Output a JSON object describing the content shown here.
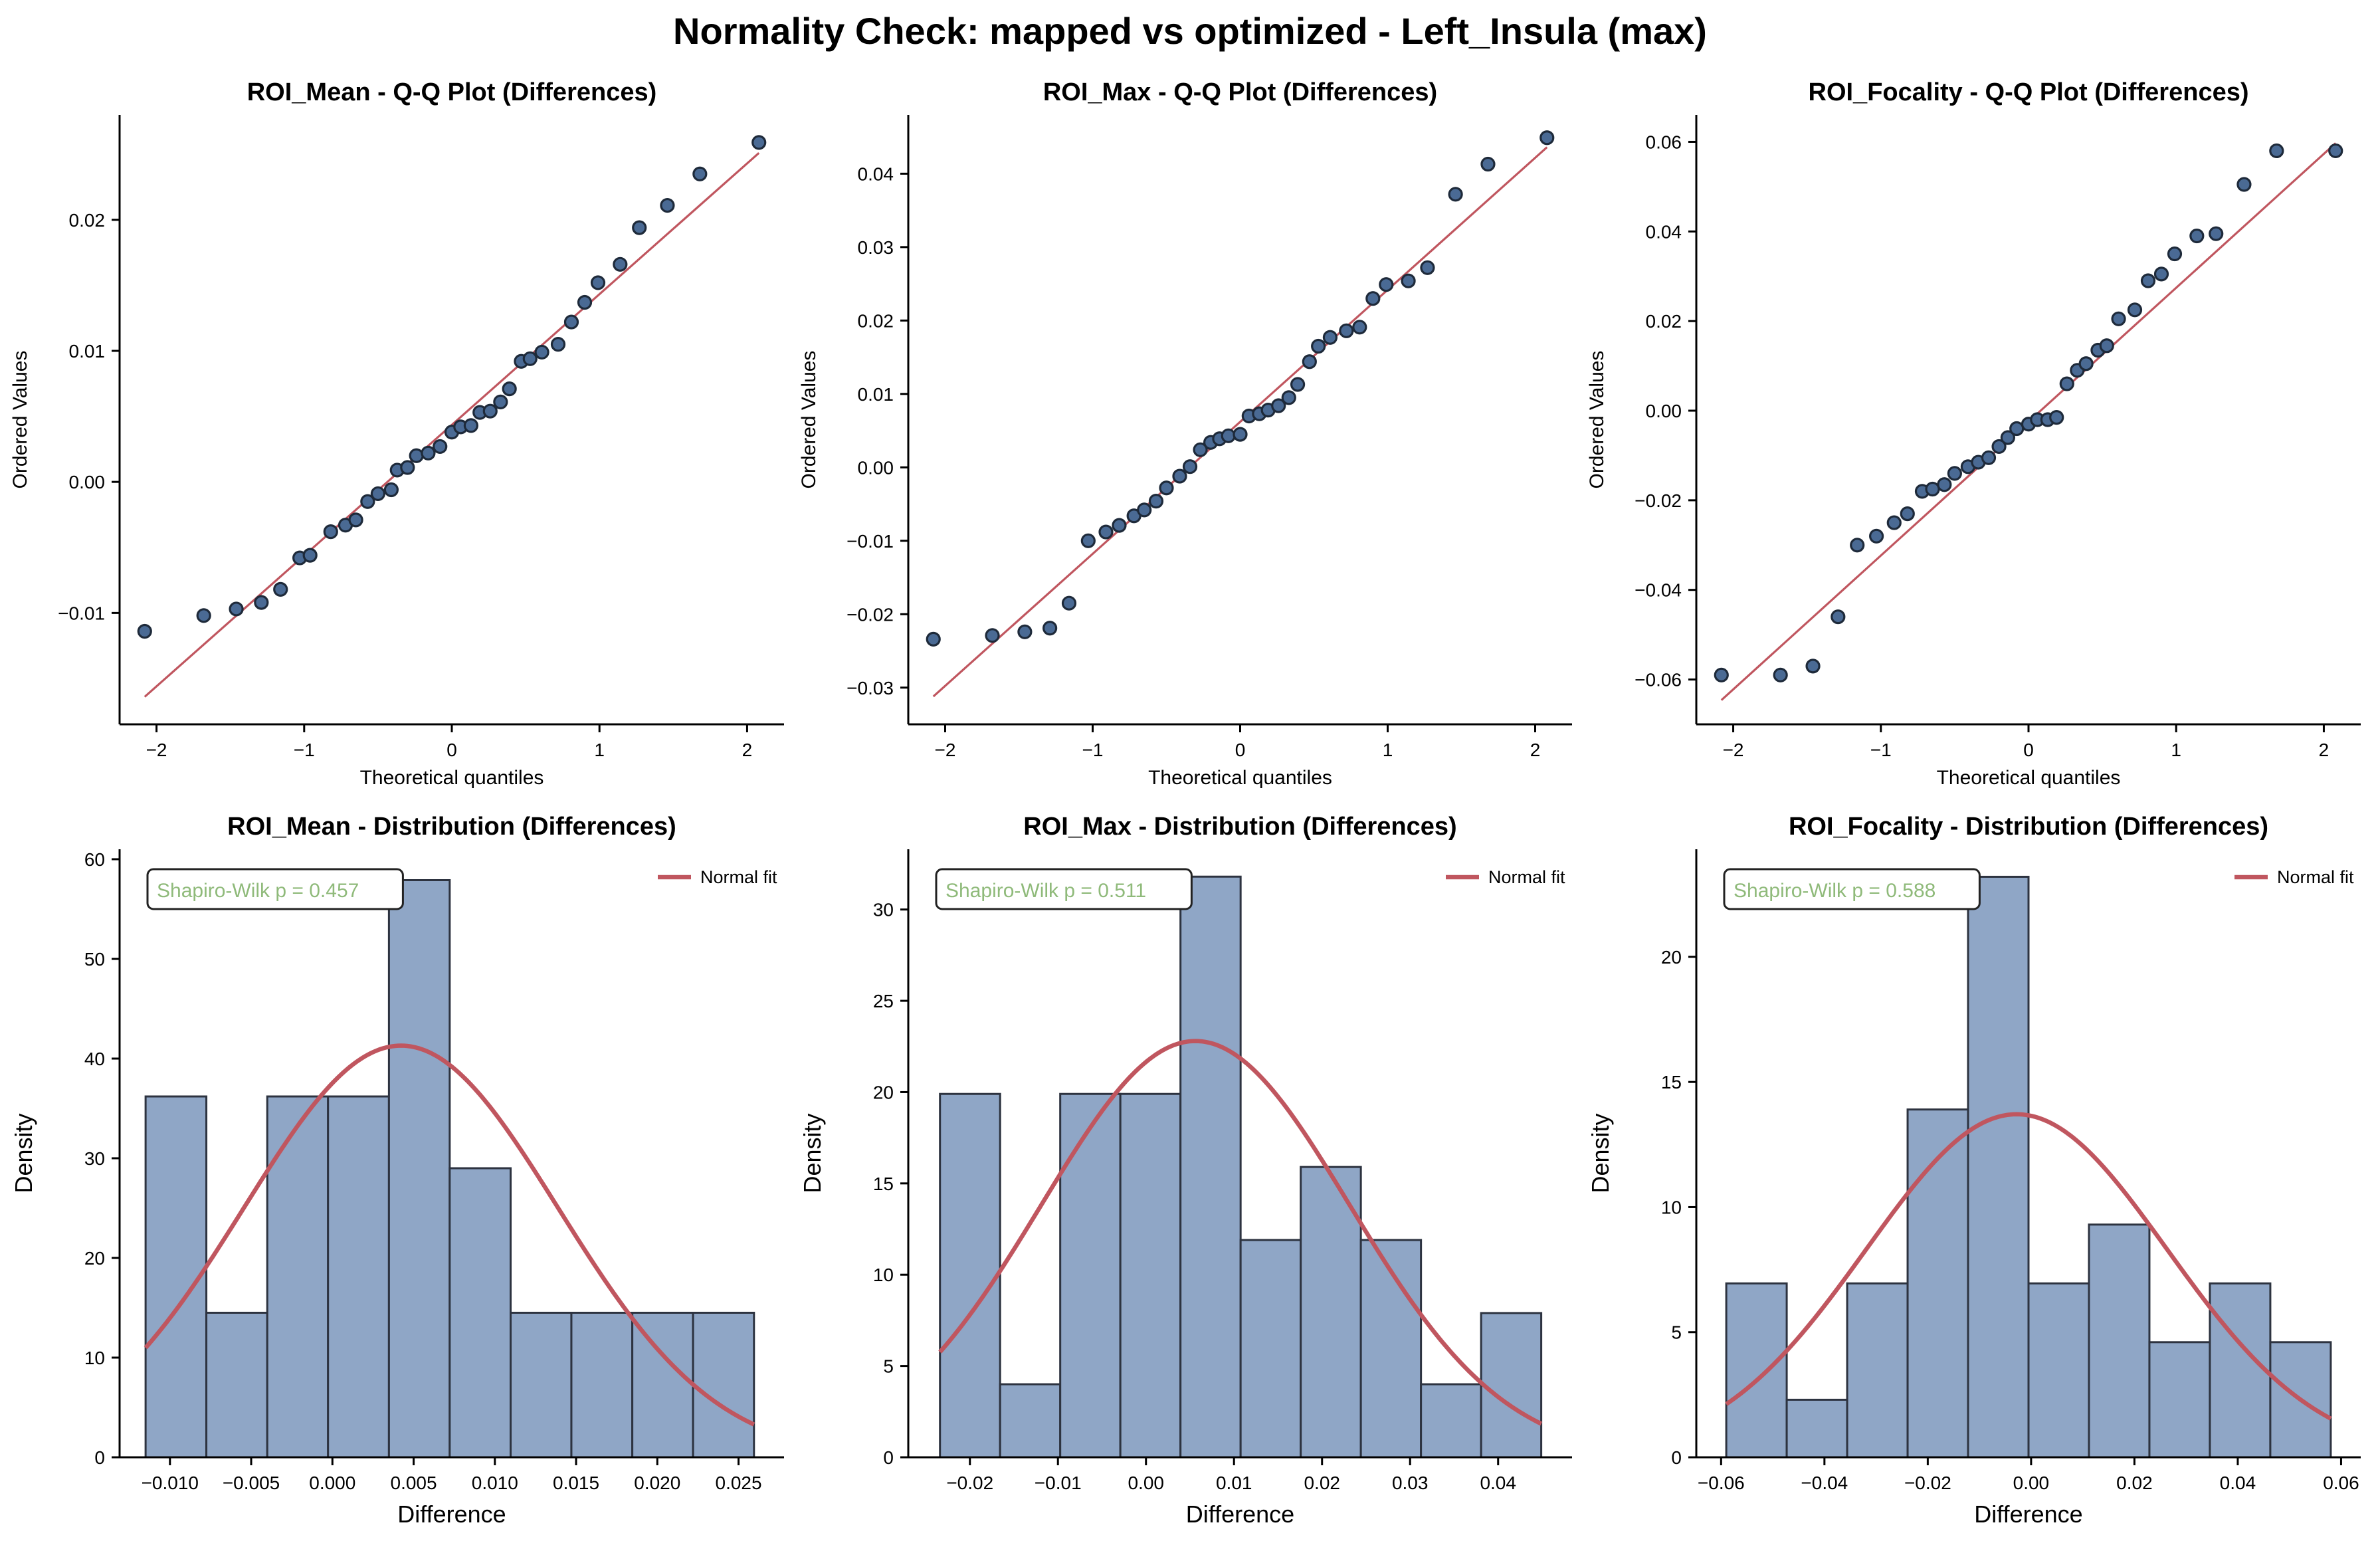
{
  "figure_title": "Normality Check: mapped vs optimized - Left_Insula (max)",
  "colors": {
    "point_fill": "#4a6a94",
    "point_edge": "#1e2a3a",
    "fit_line": "#c0565f",
    "bar_fill": "#8fa6c6",
    "bar_edge": "#2d3340",
    "annotation_text": "#8fba7a"
  },
  "chart_data": [
    {
      "type": "scatter",
      "title": "ROI_Mean - Q-Q Plot (Differences)",
      "xlabel": "Theoretical quantiles",
      "ylabel": "Ordered Values",
      "xlim": [
        -2.25,
        2.25
      ],
      "ylim": [
        -0.0185,
        0.028
      ],
      "xticks": [
        -2,
        -1,
        0,
        1,
        2
      ],
      "xticklabels": [
        "−2",
        "−1",
        "0",
        "1",
        "2"
      ],
      "yticks": [
        -0.01,
        0.0,
        0.01,
        0.02
      ],
      "yticklabels": [
        "−0.01",
        "0.00",
        "0.01",
        "0.02"
      ],
      "points": {
        "x": [
          -2.08,
          -1.68,
          -1.46,
          -1.29,
          -1.16,
          -1.03,
          -0.96,
          -0.82,
          -0.72,
          -0.65,
          -0.57,
          -0.5,
          -0.41,
          -0.37,
          -0.3,
          -0.24,
          -0.16,
          -0.08,
          0.0,
          0.06,
          0.13,
          0.19,
          0.26,
          0.33,
          0.39,
          0.47,
          0.53,
          0.61,
          0.72,
          0.81,
          0.9,
          0.99,
          1.14,
          1.27,
          1.46,
          1.68,
          2.08
        ],
        "y": [
          -0.0114,
          -0.0102,
          -0.0097,
          -0.0092,
          -0.0082,
          -0.0058,
          -0.0056,
          -0.0038,
          -0.0033,
          -0.0029,
          -0.0015,
          -0.0009,
          -0.0006,
          0.0009,
          0.0011,
          0.002,
          0.0022,
          0.0027,
          0.0038,
          0.0042,
          0.0043,
          0.0053,
          0.0054,
          0.0061,
          0.0071,
          0.0092,
          0.0094,
          0.0099,
          0.0105,
          0.0122,
          0.0137,
          0.0152,
          0.0166,
          0.0194,
          0.0211,
          0.0235,
          0.0259
        ]
      },
      "fit_line": {
        "x": [
          -2.08,
          2.08
        ],
        "y": [
          -0.0164,
          0.0251
        ]
      }
    },
    {
      "type": "scatter",
      "title": "ROI_Max - Q-Q Plot (Differences)",
      "xlabel": "Theoretical quantiles",
      "ylabel": "Ordered Values",
      "xlim": [
        -2.25,
        2.25
      ],
      "ylim": [
        -0.035,
        0.048
      ],
      "xticks": [
        -2,
        -1,
        0,
        1,
        2
      ],
      "xticklabels": [
        "−2",
        "−1",
        "0",
        "1",
        "2"
      ],
      "yticks": [
        -0.03,
        -0.02,
        -0.01,
        0.0,
        0.01,
        0.02,
        0.03,
        0.04
      ],
      "yticklabels": [
        "−0.03",
        "−0.02",
        "−0.01",
        "0.00",
        "0.01",
        "0.02",
        "0.03",
        "0.04"
      ],
      "points": {
        "x": [
          -2.08,
          -1.68,
          -1.46,
          -1.29,
          -1.16,
          -1.03,
          -0.91,
          -0.82,
          -0.72,
          -0.65,
          -0.57,
          -0.5,
          -0.41,
          -0.34,
          -0.27,
          -0.2,
          -0.14,
          -0.08,
          0.0,
          0.06,
          0.13,
          0.19,
          0.26,
          0.33,
          0.39,
          0.47,
          0.53,
          0.61,
          0.72,
          0.81,
          0.9,
          0.99,
          1.14,
          1.27,
          1.46,
          1.68,
          2.08
        ],
        "y": [
          -0.0234,
          -0.0229,
          -0.0224,
          -0.0219,
          -0.0185,
          -0.01,
          -0.0088,
          -0.0079,
          -0.0066,
          -0.0058,
          -0.0046,
          -0.0028,
          -0.0012,
          0.0001,
          0.0024,
          0.0034,
          0.0039,
          0.0043,
          0.0045,
          0.007,
          0.0073,
          0.0078,
          0.0084,
          0.0095,
          0.0113,
          0.0144,
          0.0165,
          0.0177,
          0.0186,
          0.0191,
          0.023,
          0.0249,
          0.0254,
          0.0272,
          0.0372,
          0.0413,
          0.0449
        ]
      },
      "fit_line": {
        "x": [
          -2.08,
          2.08
        ],
        "y": [
          -0.0312,
          0.0436
        ]
      }
    },
    {
      "type": "scatter",
      "title": "ROI_Focality - Q-Q Plot (Differences)",
      "xlabel": "Theoretical quantiles",
      "ylabel": "Ordered Values",
      "xlim": [
        -2.25,
        2.25
      ],
      "ylim": [
        -0.07,
        0.066
      ],
      "xticks": [
        -2,
        -1,
        0,
        1,
        2
      ],
      "xticklabels": [
        "−2",
        "−1",
        "0",
        "1",
        "2"
      ],
      "yticks": [
        -0.06,
        -0.04,
        -0.02,
        0.0,
        0.02,
        0.04,
        0.06
      ],
      "yticklabels": [
        "−0.06",
        "−0.04",
        "−0.02",
        "0.00",
        "0.02",
        "0.04",
        "0.06"
      ],
      "points": {
        "x": [
          -2.08,
          -1.68,
          -1.46,
          -1.29,
          -1.16,
          -1.03,
          -0.91,
          -0.82,
          -0.72,
          -0.65,
          -0.57,
          -0.5,
          -0.41,
          -0.34,
          -0.27,
          -0.2,
          -0.14,
          -0.08,
          0.0,
          0.06,
          0.13,
          0.19,
          0.26,
          0.33,
          0.39,
          0.47,
          0.53,
          0.61,
          0.72,
          0.81,
          0.9,
          0.99,
          1.14,
          1.27,
          1.46,
          1.68,
          2.08
        ],
        "y": [
          -0.059,
          -0.059,
          -0.057,
          -0.046,
          -0.03,
          -0.028,
          -0.025,
          -0.023,
          -0.018,
          -0.0175,
          -0.0165,
          -0.014,
          -0.0125,
          -0.0115,
          -0.0105,
          -0.008,
          -0.006,
          -0.004,
          -0.003,
          -0.002,
          -0.002,
          -0.0015,
          0.006,
          0.009,
          0.0105,
          0.0135,
          0.0145,
          0.0205,
          0.0225,
          0.029,
          0.0305,
          0.035,
          0.039,
          0.0395,
          0.0505,
          0.058,
          0.058
        ]
      },
      "fit_line": {
        "x": [
          -2.08,
          2.08
        ],
        "y": [
          -0.0646,
          0.0597
        ]
      }
    },
    {
      "type": "bar",
      "title": "ROI_Mean - Distribution (Differences)",
      "xlabel": "Difference",
      "ylabel": "Density",
      "xlim": [
        -0.0131,
        0.0278
      ],
      "ylim": [
        0,
        61
      ],
      "xticks": [
        -0.01,
        -0.005,
        0.0,
        0.005,
        0.01,
        0.015,
        0.02,
        0.025
      ],
      "xticklabels": [
        "−0.010",
        "−0.005",
        "0.000",
        "0.005",
        "0.010",
        "0.015",
        "0.020",
        "0.025"
      ],
      "yticks": [
        0,
        10,
        20,
        30,
        40,
        50,
        60
      ],
      "yticklabels": [
        "0",
        "10",
        "20",
        "30",
        "40",
        "50",
        "60"
      ],
      "bin_edges": [
        -0.0115,
        -0.00776,
        -0.00401,
        -0.00027,
        0.00348,
        0.00722,
        0.01097,
        0.01471,
        0.01846,
        0.0222,
        0.02595
      ],
      "density": [
        36.2,
        14.5,
        36.2,
        36.2,
        57.9,
        29.0,
        14.5,
        14.5,
        14.5,
        14.5
      ],
      "normal_fit": {
        "mean": 0.00422,
        "sd": 0.00966
      },
      "annotation": "Shapiro-Wilk p = 0.457",
      "legend": "Normal fit"
    },
    {
      "type": "bar",
      "title": "ROI_Max - Distribution (Differences)",
      "xlabel": "Difference",
      "ylabel": "Density",
      "xlim": [
        -0.027,
        0.0484
      ],
      "ylim": [
        0,
        33.3
      ],
      "xticks": [
        -0.02,
        -0.01,
        0.0,
        0.01,
        0.02,
        0.03,
        0.04
      ],
      "xticklabels": [
        "−0.02",
        "−0.01",
        "0.00",
        "0.01",
        "0.02",
        "0.03",
        "0.04"
      ],
      "yticks": [
        0,
        5,
        10,
        15,
        20,
        25,
        30
      ],
      "yticklabels": [
        "0",
        "5",
        "10",
        "15",
        "20",
        "25",
        "30"
      ],
      "bin_edges": [
        -0.0234,
        -0.01657,
        -0.00974,
        -0.00291,
        0.00392,
        0.01075,
        0.01758,
        0.02441,
        0.03124,
        0.03807,
        0.0449
      ],
      "density": [
        19.9,
        4.0,
        19.9,
        19.9,
        31.8,
        11.9,
        15.9,
        11.9,
        4.0,
        7.9
      ],
      "normal_fit": {
        "mean": 0.00562,
        "sd": 0.0175
      },
      "annotation": "Shapiro-Wilk p = 0.511",
      "legend": "Normal fit"
    },
    {
      "type": "bar",
      "title": "ROI_Focality - Distribution (Differences)",
      "xlabel": "Difference",
      "ylabel": "Density",
      "xlim": [
        -0.0648,
        0.0638
      ],
      "ylim": [
        0,
        24.3
      ],
      "xticks": [
        -0.06,
        -0.04,
        -0.02,
        0.0,
        0.02,
        0.04,
        0.06
      ],
      "xticklabels": [
        "−0.06",
        "−0.04",
        "−0.02",
        "0.00",
        "0.02",
        "0.04",
        "0.06"
      ],
      "yticks": [
        0,
        5,
        10,
        15,
        20
      ],
      "yticklabels": [
        "0",
        "5",
        "10",
        "15",
        "20"
      ],
      "bin_edges": [
        -0.059,
        -0.0473,
        -0.0356,
        -0.0239,
        -0.0122,
        -0.0005,
        0.0112,
        0.0229,
        0.0346,
        0.0463,
        0.058
      ],
      "density": [
        6.95,
        2.3,
        6.95,
        13.9,
        23.2,
        6.95,
        9.3,
        4.6,
        6.95,
        4.6
      ],
      "normal_fit": {
        "mean": -0.0028,
        "sd": 0.0291
      },
      "annotation": "Shapiro-Wilk p = 0.588",
      "legend": "Normal fit"
    }
  ]
}
